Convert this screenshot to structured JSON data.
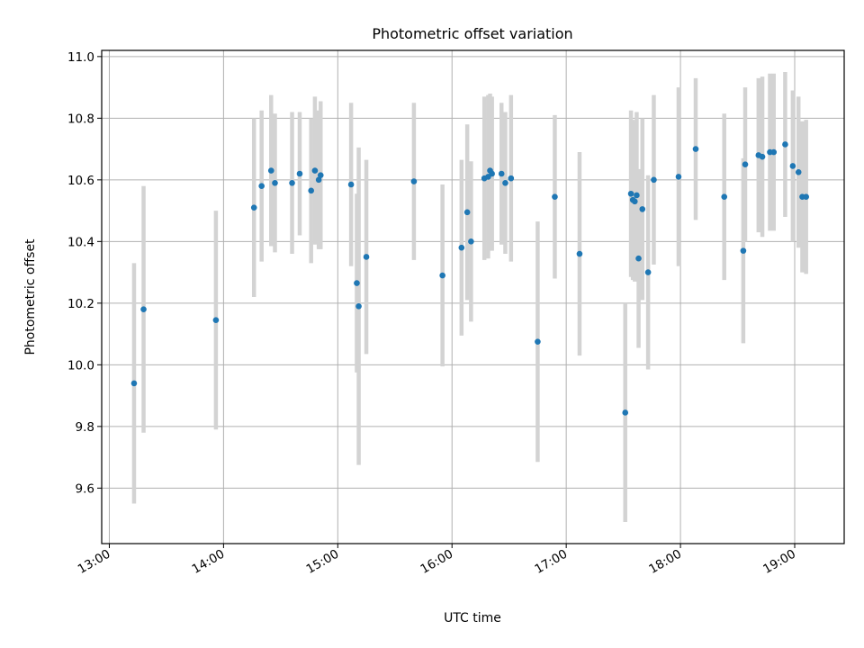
{
  "chart_data": {
    "type": "scatter",
    "title": "Photometric offset variation",
    "xlabel": "UTC time",
    "ylabel": "Photometric offset",
    "x_unit": "hours UTC",
    "xlim": [
      "12:56",
      "19:26"
    ],
    "ylim": [
      9.42,
      11.02
    ],
    "x_ticks": [
      "13:00",
      "14:00",
      "15:00",
      "16:00",
      "17:00",
      "18:00",
      "19:00"
    ],
    "y_ticks": [
      "9.6",
      "9.8",
      "10.0",
      "10.2",
      "10.4",
      "10.6",
      "10.8",
      "11.0"
    ],
    "grid": true,
    "colors": {
      "points": "#1f77b4",
      "errorbars": "#d3d3d3",
      "grid": "#b0b0b0"
    },
    "series": [
      {
        "x": [
          "13:13",
          "13:18",
          "13:56",
          "14:16",
          "14:20",
          "14:25",
          "14:27",
          "14:36",
          "14:40",
          "14:46",
          "14:48",
          "14:50",
          "14:51",
          "15:07",
          "15:10",
          "15:11",
          "15:15",
          "15:40",
          "15:55",
          "16:05",
          "16:08",
          "16:10",
          "16:17",
          "16:19",
          "16:20",
          "16:21",
          "16:26",
          "16:28",
          "16:31",
          "16:45",
          "16:54",
          "17:07",
          "17:31",
          "17:34",
          "17:35",
          "17:36",
          "17:37",
          "17:38",
          "17:40",
          "17:43",
          "17:46",
          "17:59",
          "18:08",
          "18:23",
          "18:33",
          "18:34",
          "18:41",
          "18:43",
          "18:47",
          "18:49",
          "18:55",
          "18:59",
          "19:02",
          "19:04",
          "19:06"
        ],
        "y": [
          9.94,
          10.18,
          10.145,
          10.51,
          10.58,
          10.63,
          10.59,
          10.59,
          10.62,
          10.565,
          10.63,
          10.6,
          10.615,
          10.585,
          10.265,
          10.19,
          10.35,
          10.595,
          10.29,
          10.38,
          10.495,
          10.4,
          10.605,
          10.61,
          10.63,
          10.62,
          10.62,
          10.59,
          10.605,
          10.075,
          10.545,
          10.36,
          9.845,
          10.555,
          10.535,
          10.53,
          10.55,
          10.345,
          10.505,
          10.3,
          10.6,
          10.61,
          10.7,
          10.545,
          10.37,
          10.65,
          10.68,
          10.675,
          10.69,
          10.69,
          10.715,
          10.645,
          10.625,
          10.545,
          10.545
        ],
        "yerr": [
          0.39,
          0.4,
          0.355,
          0.29,
          0.245,
          0.245,
          0.225,
          0.23,
          0.2,
          0.235,
          0.24,
          0.225,
          0.24,
          0.265,
          0.29,
          0.515,
          0.315,
          0.255,
          0.295,
          0.285,
          0.285,
          0.26,
          0.265,
          0.265,
          0.25,
          0.25,
          0.23,
          0.23,
          0.27,
          0.39,
          0.265,
          0.33,
          0.355,
          0.27,
          0.26,
          0.26,
          0.27,
          0.29,
          0.295,
          0.315,
          0.275,
          0.29,
          0.23,
          0.27,
          0.3,
          0.25,
          0.25,
          0.26,
          0.255,
          0.255,
          0.235,
          0.245,
          0.245,
          0.245,
          0.25
        ]
      }
    ]
  }
}
